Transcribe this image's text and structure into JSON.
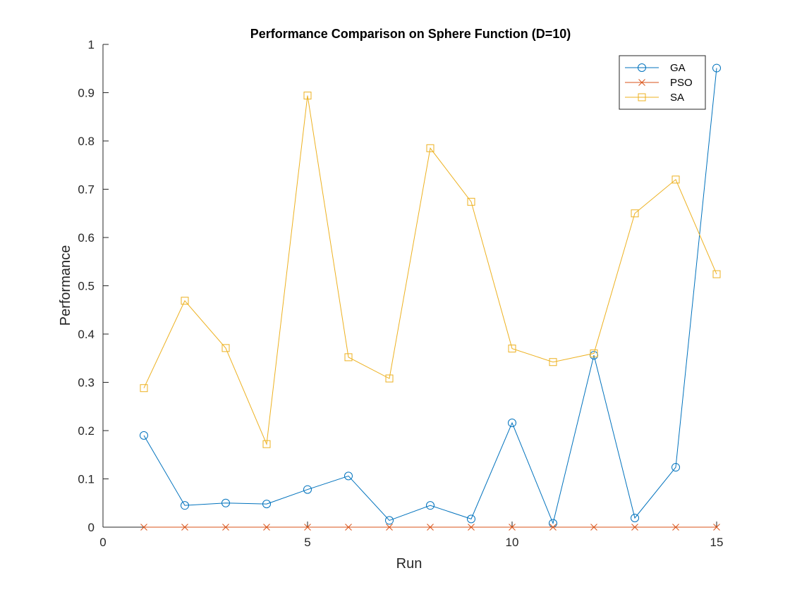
{
  "chart_data": {
    "type": "line",
    "title": "Performance Comparison on Sphere Function (D=10)",
    "xlabel": "Run",
    "ylabel": "Performance",
    "xlim": [
      0,
      15
    ],
    "ylim": [
      0,
      1
    ],
    "xticks": [
      0,
      5,
      10,
      15
    ],
    "yticks": [
      0,
      0.1,
      0.2,
      0.3,
      0.4,
      0.5,
      0.6,
      0.7,
      0.8,
      0.9,
      1
    ],
    "x": [
      1,
      2,
      3,
      4,
      5,
      6,
      7,
      8,
      9,
      10,
      11,
      12,
      13,
      14,
      15
    ],
    "grid": false,
    "legend_position": "top-right",
    "series": [
      {
        "name": "GA",
        "color": "#0072BD",
        "marker": "circle",
        "values": [
          0.19,
          0.045,
          0.05,
          0.048,
          0.078,
          0.106,
          0.014,
          0.045,
          0.017,
          0.216,
          0.008,
          0.356,
          0.019,
          0.124,
          0.951
        ]
      },
      {
        "name": "PSO",
        "color": "#D95319",
        "marker": "x",
        "values": [
          0,
          0,
          0,
          0,
          0,
          0,
          0,
          0,
          0,
          0,
          0,
          0,
          0,
          0,
          0
        ]
      },
      {
        "name": "SA",
        "color": "#EDB120",
        "marker": "square",
        "values": [
          0.288,
          0.469,
          0.371,
          0.172,
          0.894,
          0.352,
          0.308,
          0.785,
          0.674,
          0.37,
          0.342,
          0.36,
          0.65,
          0.72,
          0.524
        ]
      }
    ]
  }
}
